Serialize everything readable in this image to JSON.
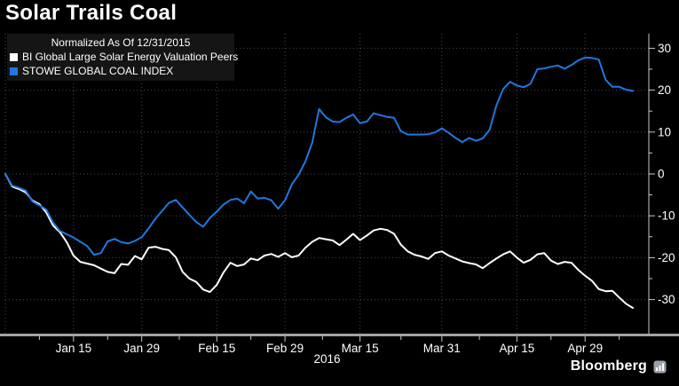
{
  "header": {
    "title": "Solar Trails Coal"
  },
  "legend": {
    "note": "Normalized As Of 12/31/2015",
    "series": [
      {
        "label": "BI Global Large Solar Energy Valuation Peers",
        "color": "#ffffff"
      },
      {
        "label": "STOWE GLOBAL COAL INDEX",
        "color": "#1f78e0"
      }
    ]
  },
  "footer": {
    "year_label": "2016",
    "brand": "Bloomberg"
  },
  "colors": {
    "background": "#000000",
    "grid": "#4a4a4a",
    "axis": "#c9c9c9",
    "axis_bar": "#a3a3a3",
    "solar_line": "#ffffff",
    "coal_line": "#1f78e0"
  },
  "chart_data": {
    "type": "line",
    "title": "Solar Trails Coal",
    "subtitle": "Normalized As Of 12/31/2015",
    "legend_position": "top-left",
    "grid": "dotted",
    "x_axis": {
      "year": "2016",
      "ticks": [
        {
          "label": "Jan 15",
          "date": "1/15"
        },
        {
          "label": "Jan 29",
          "date": "1/29"
        },
        {
          "label": "Feb 15",
          "date": "2/15"
        },
        {
          "label": "Feb 29",
          "date": "2/29"
        },
        {
          "label": "Mar 15",
          "date": "3/15"
        },
        {
          "label": "Mar 31",
          "date": "3/31"
        },
        {
          "label": "Apr 15",
          "date": "4/15"
        },
        {
          "label": "Apr 29",
          "date": "4/29"
        }
      ]
    },
    "y_axis": {
      "min": -30,
      "max": 30,
      "major_ticks": [
        30,
        20,
        10,
        0,
        -10,
        -20,
        -30
      ],
      "minor_ticks": [
        25,
        15,
        5,
        -5,
        -15,
        -25
      ]
    },
    "dates": [
      "12/31",
      "1/4",
      "1/5",
      "1/6",
      "1/7",
      "1/8",
      "1/11",
      "1/12",
      "1/13",
      "1/14",
      "1/15",
      "1/18",
      "1/19",
      "1/20",
      "1/21",
      "1/22",
      "1/25",
      "1/26",
      "1/27",
      "1/28",
      "1/29",
      "2/1",
      "2/2",
      "2/3",
      "2/4",
      "2/5",
      "2/8",
      "2/9",
      "2/10",
      "2/11",
      "2/12",
      "2/15",
      "2/16",
      "2/17",
      "2/18",
      "2/19",
      "2/22",
      "2/23",
      "2/24",
      "2/25",
      "2/26",
      "2/29",
      "3/1",
      "3/2",
      "3/3",
      "3/4",
      "3/7",
      "3/8",
      "3/9",
      "3/10",
      "3/11",
      "3/14",
      "3/15",
      "3/16",
      "3/17",
      "3/18",
      "3/21",
      "3/22",
      "3/23",
      "3/24",
      "3/25",
      "3/28",
      "3/29",
      "3/30",
      "3/31",
      "4/1",
      "4/4",
      "4/5",
      "4/6",
      "4/7",
      "4/8",
      "4/11",
      "4/12",
      "4/13",
      "4/14",
      "4/15",
      "4/18",
      "4/19",
      "4/20",
      "4/21",
      "4/22",
      "4/25",
      "4/26",
      "4/27",
      "4/28",
      "4/29",
      "5/2",
      "5/3",
      "5/4",
      "5/5",
      "5/6",
      "5/9",
      "5/10"
    ],
    "series": [
      {
        "name": "BI Global Large Solar Energy Valuation Peers",
        "color": "#ffffff",
        "values": [
          0,
          -3.0,
          -3.6,
          -4.4,
          -6.4,
          -7.2,
          -9.2,
          -12.3,
          -13.9,
          -16.3,
          -19.5,
          -21.0,
          -21.4,
          -21.8,
          -22.6,
          -23.4,
          -23.7,
          -21.5,
          -21.7,
          -19.6,
          -20.4,
          -17.6,
          -17.4,
          -17.9,
          -18.2,
          -19.9,
          -23.4,
          -25.0,
          -25.8,
          -27.6,
          -28.2,
          -26.5,
          -23.5,
          -21.2,
          -22.0,
          -21.6,
          -20.2,
          -20.6,
          -19.5,
          -19.1,
          -19.8,
          -18.9,
          -19.9,
          -19.5,
          -17.6,
          -16.2,
          -15.3,
          -15.6,
          -15.9,
          -17.0,
          -15.7,
          -14.3,
          -15.8,
          -14.7,
          -13.5,
          -13.1,
          -13.4,
          -14.3,
          -16.9,
          -18.5,
          -19.3,
          -19.7,
          -20.3,
          -18.9,
          -18.5,
          -19.5,
          -20.2,
          -20.9,
          -21.3,
          -21.6,
          -22.5,
          -21.3,
          -20.2,
          -19.2,
          -18.5,
          -20.0,
          -21.2,
          -20.5,
          -19.2,
          -18.9,
          -20.7,
          -21.5,
          -21.0,
          -21.2,
          -22.9,
          -24.3,
          -25.5,
          -27.5,
          -28.0,
          -27.9,
          -29.5,
          -31.0,
          -32.0
        ]
      },
      {
        "name": "STOWE GLOBAL COAL INDEX",
        "color": "#1f78e0",
        "values": [
          0,
          -2.8,
          -3.3,
          -4.0,
          -6.6,
          -7.5,
          -8.5,
          -11.6,
          -13.6,
          -14.4,
          -15.2,
          -16.2,
          -17.2,
          -19.3,
          -18.9,
          -16.1,
          -15.5,
          -16.3,
          -16.6,
          -16.0,
          -15.1,
          -13.0,
          -10.7,
          -8.8,
          -6.9,
          -6.2,
          -8.0,
          -9.8,
          -11.5,
          -12.6,
          -10.5,
          -9.0,
          -7.3,
          -6.2,
          -5.9,
          -7.0,
          -4.2,
          -5.9,
          -5.7,
          -6.3,
          -8.3,
          -6.3,
          -2.5,
          -0.2,
          3.0,
          7.5,
          15.5,
          13.5,
          12.5,
          12.4,
          13.4,
          14.2,
          12.1,
          12.5,
          14.5,
          14.0,
          13.6,
          13.4,
          10.2,
          9.4,
          9.4,
          9.4,
          9.5,
          9.9,
          10.9,
          9.8,
          8.6,
          7.6,
          8.6,
          7.9,
          8.5,
          10.5,
          16.4,
          20.3,
          22.0,
          21.1,
          20.7,
          21.5,
          25.0,
          25.2,
          25.6,
          25.9,
          25.1,
          26.0,
          27.1,
          27.8,
          27.7,
          27.3,
          22.5,
          20.8,
          20.8,
          20.1,
          19.8
        ]
      }
    ]
  }
}
